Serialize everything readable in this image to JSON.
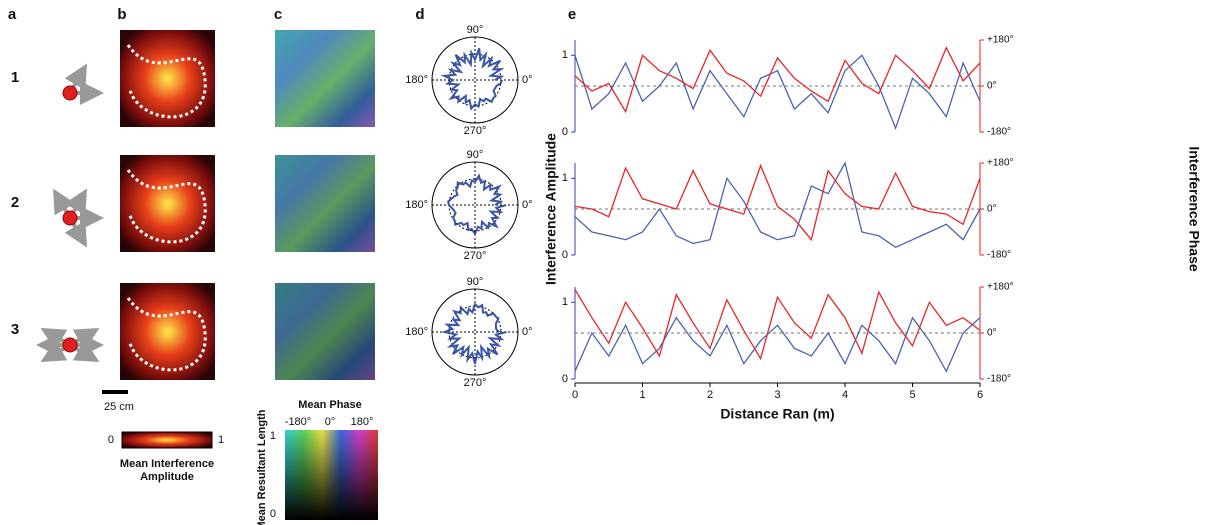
{
  "panel_labels": [
    "a",
    "b",
    "c",
    "d",
    "e"
  ],
  "row_labels": [
    "1",
    "2",
    "3"
  ],
  "scale_bar": "25 cm",
  "amplitude_colorbar": {
    "min": "0",
    "max": "1",
    "label_lines": [
      "Mean Interference",
      "Amplitude"
    ]
  },
  "phase_legend": {
    "title": "Mean Phase",
    "ticks": [
      "-180°",
      "0°",
      "180°"
    ],
    "y_label": "Mean Resultant Length",
    "y_ticks": [
      "1",
      "0"
    ]
  },
  "polar_labels": {
    "top": "90°",
    "left": "180°",
    "right": "0°",
    "bottom": "270°"
  },
  "chart_data": [
    {
      "type": "line",
      "x": [
        0,
        0.25,
        0.5,
        0.75,
        1,
        1.25,
        1.5,
        1.75,
        2,
        2.25,
        2.5,
        2.75,
        3,
        3.25,
        3.5,
        3.75,
        4,
        4.25,
        4.5,
        4.75,
        5,
        5.25,
        5.5,
        5.75,
        6
      ],
      "xlim": [
        0,
        6
      ],
      "ylim": [
        0,
        1.2
      ],
      "yticks": [
        0,
        1
      ],
      "y2lim": [
        -180,
        180
      ],
      "y2ticks": [
        {
          "value": 180,
          "label": "+180°"
        },
        {
          "value": 0,
          "label": "0°"
        },
        {
          "value": -180,
          "label": "-180°"
        }
      ],
      "series": [
        {
          "color": "#4a63b0",
          "values": [
            1.0,
            0.3,
            0.5,
            0.9,
            0.4,
            0.6,
            0.9,
            0.3,
            0.8,
            0.5,
            0.2,
            0.7,
            0.8,
            0.3,
            0.5,
            0.25,
            0.8,
            1.0,
            0.6,
            0.05,
            0.7,
            0.5,
            0.2,
            0.9,
            0.4
          ]
        },
        {
          "color": "#e8252a",
          "axis": "y2",
          "values": [
            40,
            -20,
            10,
            -100,
            120,
            60,
            30,
            -10,
            140,
            50,
            20,
            -40,
            110,
            30,
            -20,
            -60,
            100,
            10,
            -30,
            120,
            60,
            -10,
            150,
            20,
            90
          ]
        }
      ]
    },
    {
      "type": "line",
      "x": [
        0,
        0.25,
        0.5,
        0.75,
        1,
        1.25,
        1.5,
        1.75,
        2,
        2.25,
        2.5,
        2.75,
        3,
        3.25,
        3.5,
        3.75,
        4,
        4.25,
        4.5,
        4.75,
        5,
        5.25,
        5.5,
        5.75,
        6
      ],
      "xlim": [
        0,
        6
      ],
      "ylim": [
        0,
        1.2
      ],
      "yticks": [
        0,
        1
      ],
      "y2lim": [
        -180,
        180
      ],
      "y2ticks": [
        {
          "value": 180,
          "label": "+180°"
        },
        {
          "value": 0,
          "label": "0°"
        },
        {
          "value": -180,
          "label": "-180°"
        }
      ],
      "y_label": "Interference Amplitude",
      "y2_label": "Interference Phase",
      "series": [
        {
          "color": "#4a63b0",
          "values": [
            0.5,
            0.3,
            0.25,
            0.2,
            0.3,
            0.6,
            0.25,
            0.15,
            0.2,
            1.0,
            0.7,
            0.3,
            0.2,
            0.25,
            0.9,
            0.8,
            1.2,
            0.3,
            0.25,
            0.1,
            0.2,
            0.3,
            0.4,
            0.2,
            0.6
          ]
        },
        {
          "color": "#e8252a",
          "axis": "y2",
          "values": [
            10,
            0,
            -30,
            160,
            40,
            20,
            0,
            150,
            20,
            0,
            -20,
            170,
            10,
            -40,
            -120,
            150,
            60,
            10,
            0,
            140,
            10,
            -10,
            -20,
            -60,
            120
          ]
        }
      ]
    },
    {
      "type": "line",
      "x": [
        0,
        0.25,
        0.5,
        0.75,
        1,
        1.25,
        1.5,
        1.75,
        2,
        2.25,
        2.5,
        2.75,
        3,
        3.25,
        3.5,
        3.75,
        4,
        4.25,
        4.5,
        4.75,
        5,
        5.25,
        5.5,
        5.75,
        6
      ],
      "xlim": [
        0,
        6
      ],
      "xticks": [
        0,
        1,
        2,
        3,
        4,
        5,
        6
      ],
      "x_label": "Distance Ran (m)",
      "ylim": [
        0,
        1.2
      ],
      "yticks": [
        0,
        1
      ],
      "y2lim": [
        -180,
        180
      ],
      "y2ticks": [
        {
          "value": 180,
          "label": "+180°"
        },
        {
          "value": 0,
          "label": "0°"
        },
        {
          "value": -180,
          "label": "-180°"
        }
      ],
      "series": [
        {
          "color": "#4a63b0",
          "values": [
            0.1,
            0.6,
            0.3,
            0.7,
            0.2,
            0.4,
            0.8,
            0.5,
            0.3,
            0.7,
            0.2,
            0.5,
            0.7,
            0.4,
            0.3,
            0.6,
            0.2,
            0.7,
            0.5,
            0.2,
            0.8,
            0.5,
            0.1,
            0.6,
            0.8
          ]
        },
        {
          "color": "#e8252a",
          "axis": "y2",
          "values": [
            170,
            60,
            -40,
            120,
            20,
            -90,
            150,
            40,
            -60,
            130,
            10,
            -100,
            140,
            40,
            -20,
            150,
            60,
            -80,
            160,
            40,
            -50,
            120,
            30,
            60,
            10
          ]
        }
      ]
    }
  ]
}
